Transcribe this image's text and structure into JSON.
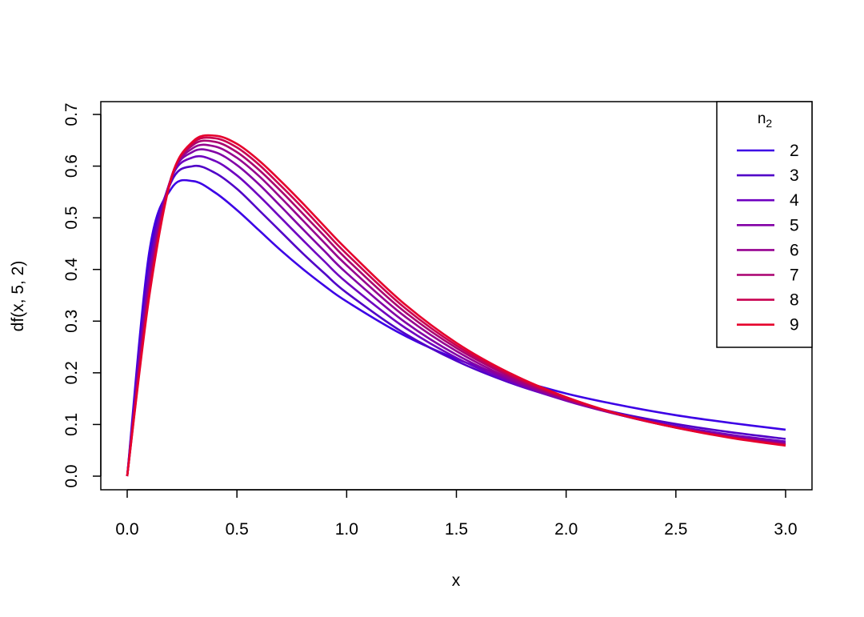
{
  "chart_data": {
    "type": "line",
    "title": "",
    "xlabel": "x",
    "ylabel": "df(x, 5, 2)",
    "xlim": [
      0,
      3
    ],
    "ylim": [
      0,
      0.7
    ],
    "x_ticks": [
      "0.0",
      "0.5",
      "1.0",
      "1.5",
      "2.0",
      "2.5",
      "3.0"
    ],
    "y_ticks": [
      "0.0",
      "0.1",
      "0.2",
      "0.3",
      "0.4",
      "0.5",
      "0.6",
      "0.7"
    ],
    "grid": false,
    "legend": {
      "title_main": "n",
      "title_sub": "2",
      "placement": "top-right"
    },
    "x": [
      0.0,
      0.1,
      0.2,
      0.3,
      0.4,
      0.5,
      0.6,
      0.7,
      0.8,
      0.9,
      1.0,
      1.25,
      1.5,
      1.75,
      2.0,
      2.25,
      2.5,
      2.75,
      3.0
    ],
    "series": [
      {
        "name": "2",
        "color": "#3c00e6",
        "values": [
          0.0,
          0.432,
          0.556,
          0.571,
          0.549,
          0.515,
          0.476,
          0.437,
          0.401,
          0.368,
          0.338,
          0.275,
          0.227,
          0.19,
          0.16,
          0.137,
          0.118,
          0.103,
          0.09
        ]
      },
      {
        "name": "3",
        "color": "#5000c8",
        "values": [
          0.0,
          0.411,
          0.569,
          0.6,
          0.587,
          0.556,
          0.515,
          0.473,
          0.431,
          0.392,
          0.355,
          0.28,
          0.223,
          0.18,
          0.147,
          0.121,
          0.101,
          0.085,
          0.072
        ]
      },
      {
        "name": "4",
        "color": "#6e00c0",
        "values": [
          0.0,
          0.394,
          0.575,
          0.617,
          0.61,
          0.582,
          0.543,
          0.5,
          0.457,
          0.415,
          0.375,
          0.292,
          0.229,
          0.182,
          0.146,
          0.118,
          0.097,
          0.08,
          0.067
        ]
      },
      {
        "name": "5",
        "color": "#8200a6",
        "values": [
          0.0,
          0.38,
          0.577,
          0.628,
          0.627,
          0.602,
          0.565,
          0.522,
          0.478,
          0.435,
          0.393,
          0.303,
          0.235,
          0.185,
          0.147,
          0.118,
          0.095,
          0.078,
          0.064
        ]
      },
      {
        "name": "6",
        "color": "#960090",
        "values": [
          0.0,
          0.369,
          0.577,
          0.635,
          0.638,
          0.616,
          0.581,
          0.539,
          0.495,
          0.451,
          0.408,
          0.314,
          0.242,
          0.188,
          0.148,
          0.118,
          0.094,
          0.076,
          0.062
        ]
      },
      {
        "name": "7",
        "color": "#aa0070",
        "values": [
          0.0,
          0.36,
          0.577,
          0.641,
          0.647,
          0.627,
          0.593,
          0.552,
          0.508,
          0.464,
          0.42,
          0.323,
          0.248,
          0.192,
          0.15,
          0.118,
          0.094,
          0.075,
          0.061
        ]
      },
      {
        "name": "8",
        "color": "#c80050",
        "values": [
          0.0,
          0.352,
          0.576,
          0.645,
          0.654,
          0.636,
          0.603,
          0.562,
          0.519,
          0.474,
          0.43,
          0.331,
          0.253,
          0.195,
          0.151,
          0.119,
          0.094,
          0.075,
          0.06
        ]
      },
      {
        "name": "9",
        "color": "#e6002c",
        "values": [
          0.0,
          0.346,
          0.575,
          0.648,
          0.659,
          0.643,
          0.611,
          0.571,
          0.528,
          0.483,
          0.439,
          0.338,
          0.258,
          0.198,
          0.153,
          0.119,
          0.094,
          0.074,
          0.059
        ]
      }
    ]
  }
}
